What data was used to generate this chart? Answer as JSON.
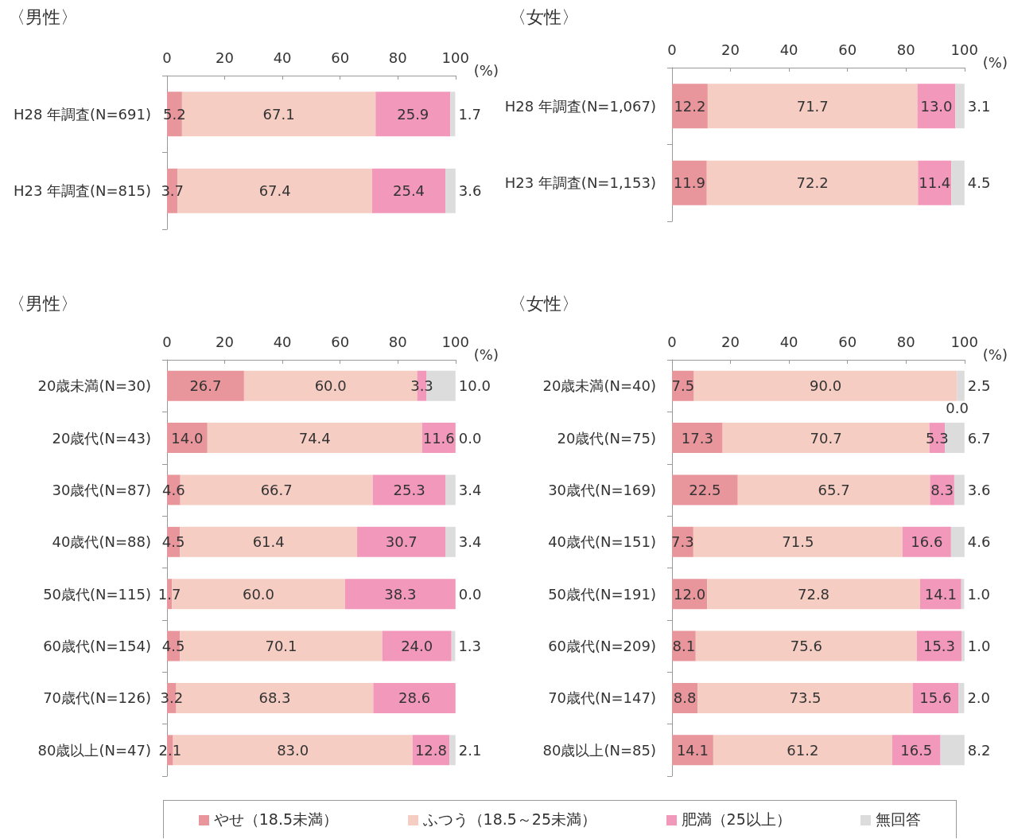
{
  "chart_data": [
    {
      "type": "bar",
      "orientation": "horizontal",
      "stacked": true,
      "title": "〈男性〉",
      "xlabel": "(%)",
      "categories": [
        "H28 年調査(N=691)",
        "H23 年調査(N=815)"
      ],
      "xlim": [
        0,
        100
      ],
      "xticks": [
        0,
        20,
        40,
        60,
        80,
        100
      ],
      "grid": false,
      "series": [
        {
          "color": "#e8959b",
          "values": [
            5.2,
            3.7
          ],
          "value_labels": [
            "5.2",
            "3.7"
          ]
        },
        {
          "color": "#f5cdc3",
          "values": [
            67.1,
            67.4
          ],
          "value_labels": [
            "67.1",
            "67.4"
          ]
        },
        {
          "color": "#f298bb",
          "values": [
            25.9,
            25.4
          ],
          "value_labels": [
            "25.9",
            "25.4"
          ]
        },
        {
          "color": "#dcdcdc",
          "values": [
            1.7,
            3.6
          ],
          "value_labels": [
            "1.7",
            "3.6"
          ]
        }
      ]
    },
    {
      "type": "bar",
      "orientation": "horizontal",
      "stacked": true,
      "title": "〈女性〉",
      "xlabel": "(%)",
      "categories": [
        "H28 年調査(N=1,067)",
        "H23 年調査(N=1,153)"
      ],
      "xlim": [
        0,
        100
      ],
      "xticks": [
        0,
        20,
        40,
        60,
        80,
        100
      ],
      "grid": false,
      "series": [
        {
          "color": "#e8959b",
          "values": [
            12.2,
            11.9
          ],
          "value_labels": [
            "12.2",
            "11.9"
          ]
        },
        {
          "color": "#f5cdc3",
          "values": [
            71.7,
            72.2
          ],
          "value_labels": [
            "71.7",
            "72.2"
          ]
        },
        {
          "color": "#f298bb",
          "values": [
            13.0,
            11.4
          ],
          "value_labels": [
            "13.0",
            "11.4"
          ]
        },
        {
          "color": "#dcdcdc",
          "values": [
            3.1,
            4.5
          ],
          "value_labels": [
            "3.1",
            "4.5"
          ]
        }
      ]
    },
    {
      "type": "bar",
      "orientation": "horizontal",
      "stacked": true,
      "title": "〈男性〉",
      "xlabel": "(%)",
      "categories": [
        "20歳未満(N=30)",
        "20歳代(N=43)",
        "30歳代(N=87)",
        "40歳代(N=88)",
        "50歳代(N=115)",
        "60歳代(N=154)",
        "70歳代(N=126)",
        "80歳以上(N=47)"
      ],
      "xlim": [
        0,
        100
      ],
      "xticks": [
        0,
        20,
        40,
        60,
        80,
        100
      ],
      "grid": false,
      "series": [
        {
          "color": "#e8959b",
          "values": [
            26.7,
            14.0,
            4.6,
            4.5,
            1.7,
            4.5,
            3.2,
            2.1
          ],
          "value_labels": [
            "26.7",
            "14.0",
            "4.6",
            "4.5",
            "1.7",
            "4.5",
            "3.2",
            "2.1"
          ]
        },
        {
          "color": "#f5cdc3",
          "values": [
            60.0,
            74.4,
            66.7,
            61.4,
            60.0,
            70.1,
            68.3,
            83.0
          ],
          "value_labels": [
            "60.0",
            "74.4",
            "66.7",
            "61.4",
            "60.0",
            "70.1",
            "68.3",
            "83.0"
          ]
        },
        {
          "color": "#f298bb",
          "values": [
            3.3,
            11.6,
            25.3,
            30.7,
            38.3,
            24.0,
            28.6,
            12.8
          ],
          "value_labels": [
            "3.3",
            "11.6",
            "25.3",
            "30.7",
            "38.3",
            "24.0",
            "28.6",
            "12.8"
          ]
        },
        {
          "color": "#dcdcdc",
          "values": [
            10.0,
            0.0,
            3.4,
            3.4,
            0.0,
            1.3,
            null,
            2.1
          ],
          "value_labels": [
            "10.0",
            "0.0",
            "3.4",
            "3.4",
            "0.0",
            "1.3",
            null,
            "2.1"
          ]
        }
      ]
    },
    {
      "type": "bar",
      "orientation": "horizontal",
      "stacked": true,
      "title": "〈女性〉",
      "xlabel": "(%)",
      "categories": [
        "20歳未満(N=40)",
        "20歳代(N=75)",
        "30歳代(N=169)",
        "40歳代(N=151)",
        "50歳代(N=191)",
        "60歳代(N=209)",
        "70歳代(N=147)",
        "80歳以上(N=85)"
      ],
      "xlim": [
        0,
        100
      ],
      "xticks": [
        0,
        20,
        40,
        60,
        80,
        100
      ],
      "grid": false,
      "legend": "bottom",
      "series": [
        {
          "name": "やせ（18.5未満）",
          "color": "#e8959b",
          "values": [
            7.5,
            17.3,
            22.5,
            7.3,
            12.0,
            8.1,
            8.8,
            14.1
          ],
          "value_labels": [
            "7.5",
            "17.3",
            "22.5",
            "7.3",
            "12.0",
            "8.1",
            "8.8",
            "14.1"
          ]
        },
        {
          "name": "ふつう（18.5～25未満）",
          "color": "#f5cdc3",
          "values": [
            90.0,
            70.7,
            65.7,
            71.5,
            72.8,
            75.6,
            73.5,
            61.2
          ],
          "value_labels": [
            "90.0",
            "70.7",
            "65.7",
            "71.5",
            "72.8",
            "75.6",
            "73.5",
            "61.2"
          ]
        },
        {
          "name": "肥満（25以上）",
          "color": "#f298bb",
          "values": [
            0.0,
            5.3,
            8.3,
            16.6,
            14.1,
            15.3,
            15.6,
            16.5
          ],
          "value_labels": [
            "0.0",
            "5.3",
            "8.3",
            "16.6",
            "14.1",
            "15.3",
            "15.6",
            "16.5"
          ]
        },
        {
          "name": "無回答",
          "color": "#dcdcdc",
          "values": [
            2.5,
            6.7,
            3.6,
            4.6,
            1.0,
            1.0,
            2.0,
            8.2
          ],
          "value_labels": [
            "2.5",
            "6.7",
            "3.6",
            "4.6",
            "1.0",
            "1.0",
            "2.0",
            "8.2"
          ]
        }
      ]
    }
  ]
}
